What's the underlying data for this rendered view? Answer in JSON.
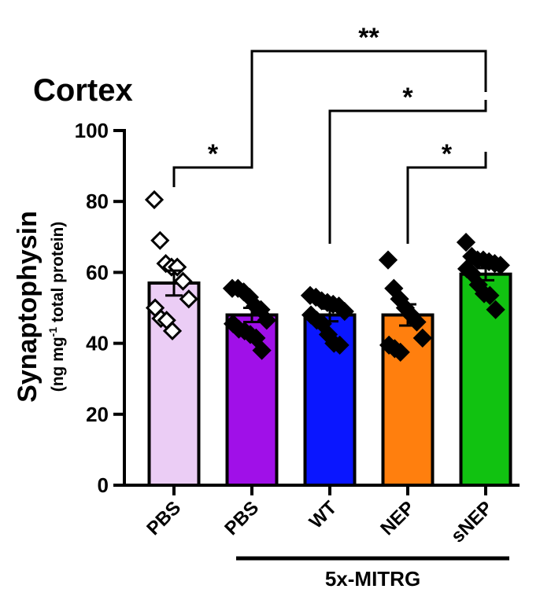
{
  "chart_data": {
    "type": "bar",
    "title": "Cortex",
    "ylabel": "Synaptophysin",
    "ylabel_sub": {
      "prefix": "(ng mg",
      "superscript": "-1",
      "suffix": " total protein)"
    },
    "ylim": [
      0,
      100
    ],
    "yticks": [
      "0",
      "20",
      "40",
      "60",
      "80",
      "100"
    ],
    "categories": [
      "PBS",
      "PBS",
      "WT",
      "NEP",
      "sNEP"
    ],
    "group_label": "5x-MITRG",
    "group_span": [
      1,
      4
    ],
    "series": [
      {
        "values": [
          57,
          48,
          48,
          48,
          59.5
        ],
        "sem": [
          3.5,
          2.0,
          1.8,
          3.0,
          1.7
        ],
        "colors": [
          "#ebcdf5",
          "#a010e8",
          "#0a16ff",
          "#ff7f0e",
          "#11c211"
        ],
        "marker_fill": [
          "white",
          "black",
          "black",
          "black",
          "black"
        ],
        "points": [
          [
            80.5,
            69,
            62.5,
            61.5,
            61.5,
            57.5,
            52.5,
            50,
            47,
            46.5,
            43.5
          ],
          [
            55.5,
            55.5,
            54.5,
            53,
            50.5,
            49.5,
            46.5,
            45.5,
            44,
            43.5,
            42.5,
            41.5,
            38
          ],
          [
            53.5,
            53,
            52,
            51.5,
            51,
            50.5,
            49,
            48,
            46.5,
            45.5,
            42.5,
            40,
            39.5
          ],
          [
            63.5,
            55.5,
            52.5,
            50,
            48,
            46,
            41.5,
            39.5,
            38.5,
            37.5
          ],
          [
            68.5,
            64.5,
            63.5,
            63.5,
            63,
            62.5,
            62,
            61,
            59.5,
            56.5,
            54,
            53.5,
            49.5
          ]
        ]
      }
    ],
    "significance": [
      {
        "from": 0,
        "to": 1,
        "label": "*"
      },
      {
        "from": 3,
        "to": 4,
        "label": "*"
      },
      {
        "from": 2,
        "to": 4,
        "label": "*"
      },
      {
        "from": 1,
        "to": 4,
        "label": "**"
      }
    ]
  }
}
